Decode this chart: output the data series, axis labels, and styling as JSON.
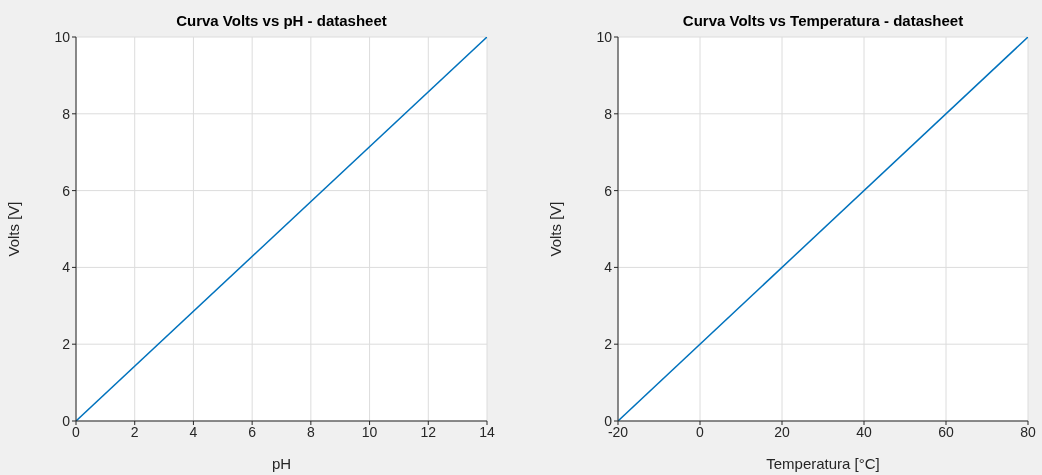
{
  "chart_data": [
    {
      "type": "line",
      "title": "Curva Volts vs pH - datasheet",
      "xlabel": "pH",
      "ylabel": "Volts [V]",
      "x": [
        0,
        14
      ],
      "series": [
        {
          "color": "#0072bd",
          "values": [
            0,
            10
          ]
        }
      ],
      "xlim": [
        0,
        14
      ],
      "xticks": [
        0,
        2,
        4,
        6,
        8,
        10,
        12,
        14
      ],
      "ylim": [
        0,
        10
      ],
      "yticks": [
        0,
        2,
        4,
        6,
        8,
        10
      ],
      "grid": true,
      "marker": "none",
      "line_style": "solid"
    },
    {
      "type": "line",
      "title": "Curva Volts vs Temperatura - datasheet",
      "xlabel": "Temperatura [°C]",
      "ylabel": "Volts [V]",
      "x": [
        -20,
        80
      ],
      "series": [
        {
          "color": "#0072bd",
          "values": [
            0,
            10
          ]
        }
      ],
      "xlim": [
        -20,
        80
      ],
      "xticks": [
        -20,
        0,
        20,
        40,
        60,
        80
      ],
      "ylim": [
        0,
        10
      ],
      "yticks": [
        0,
        2,
        4,
        6,
        8,
        10
      ],
      "grid": true,
      "marker": "none",
      "line_style": "solid"
    }
  ]
}
